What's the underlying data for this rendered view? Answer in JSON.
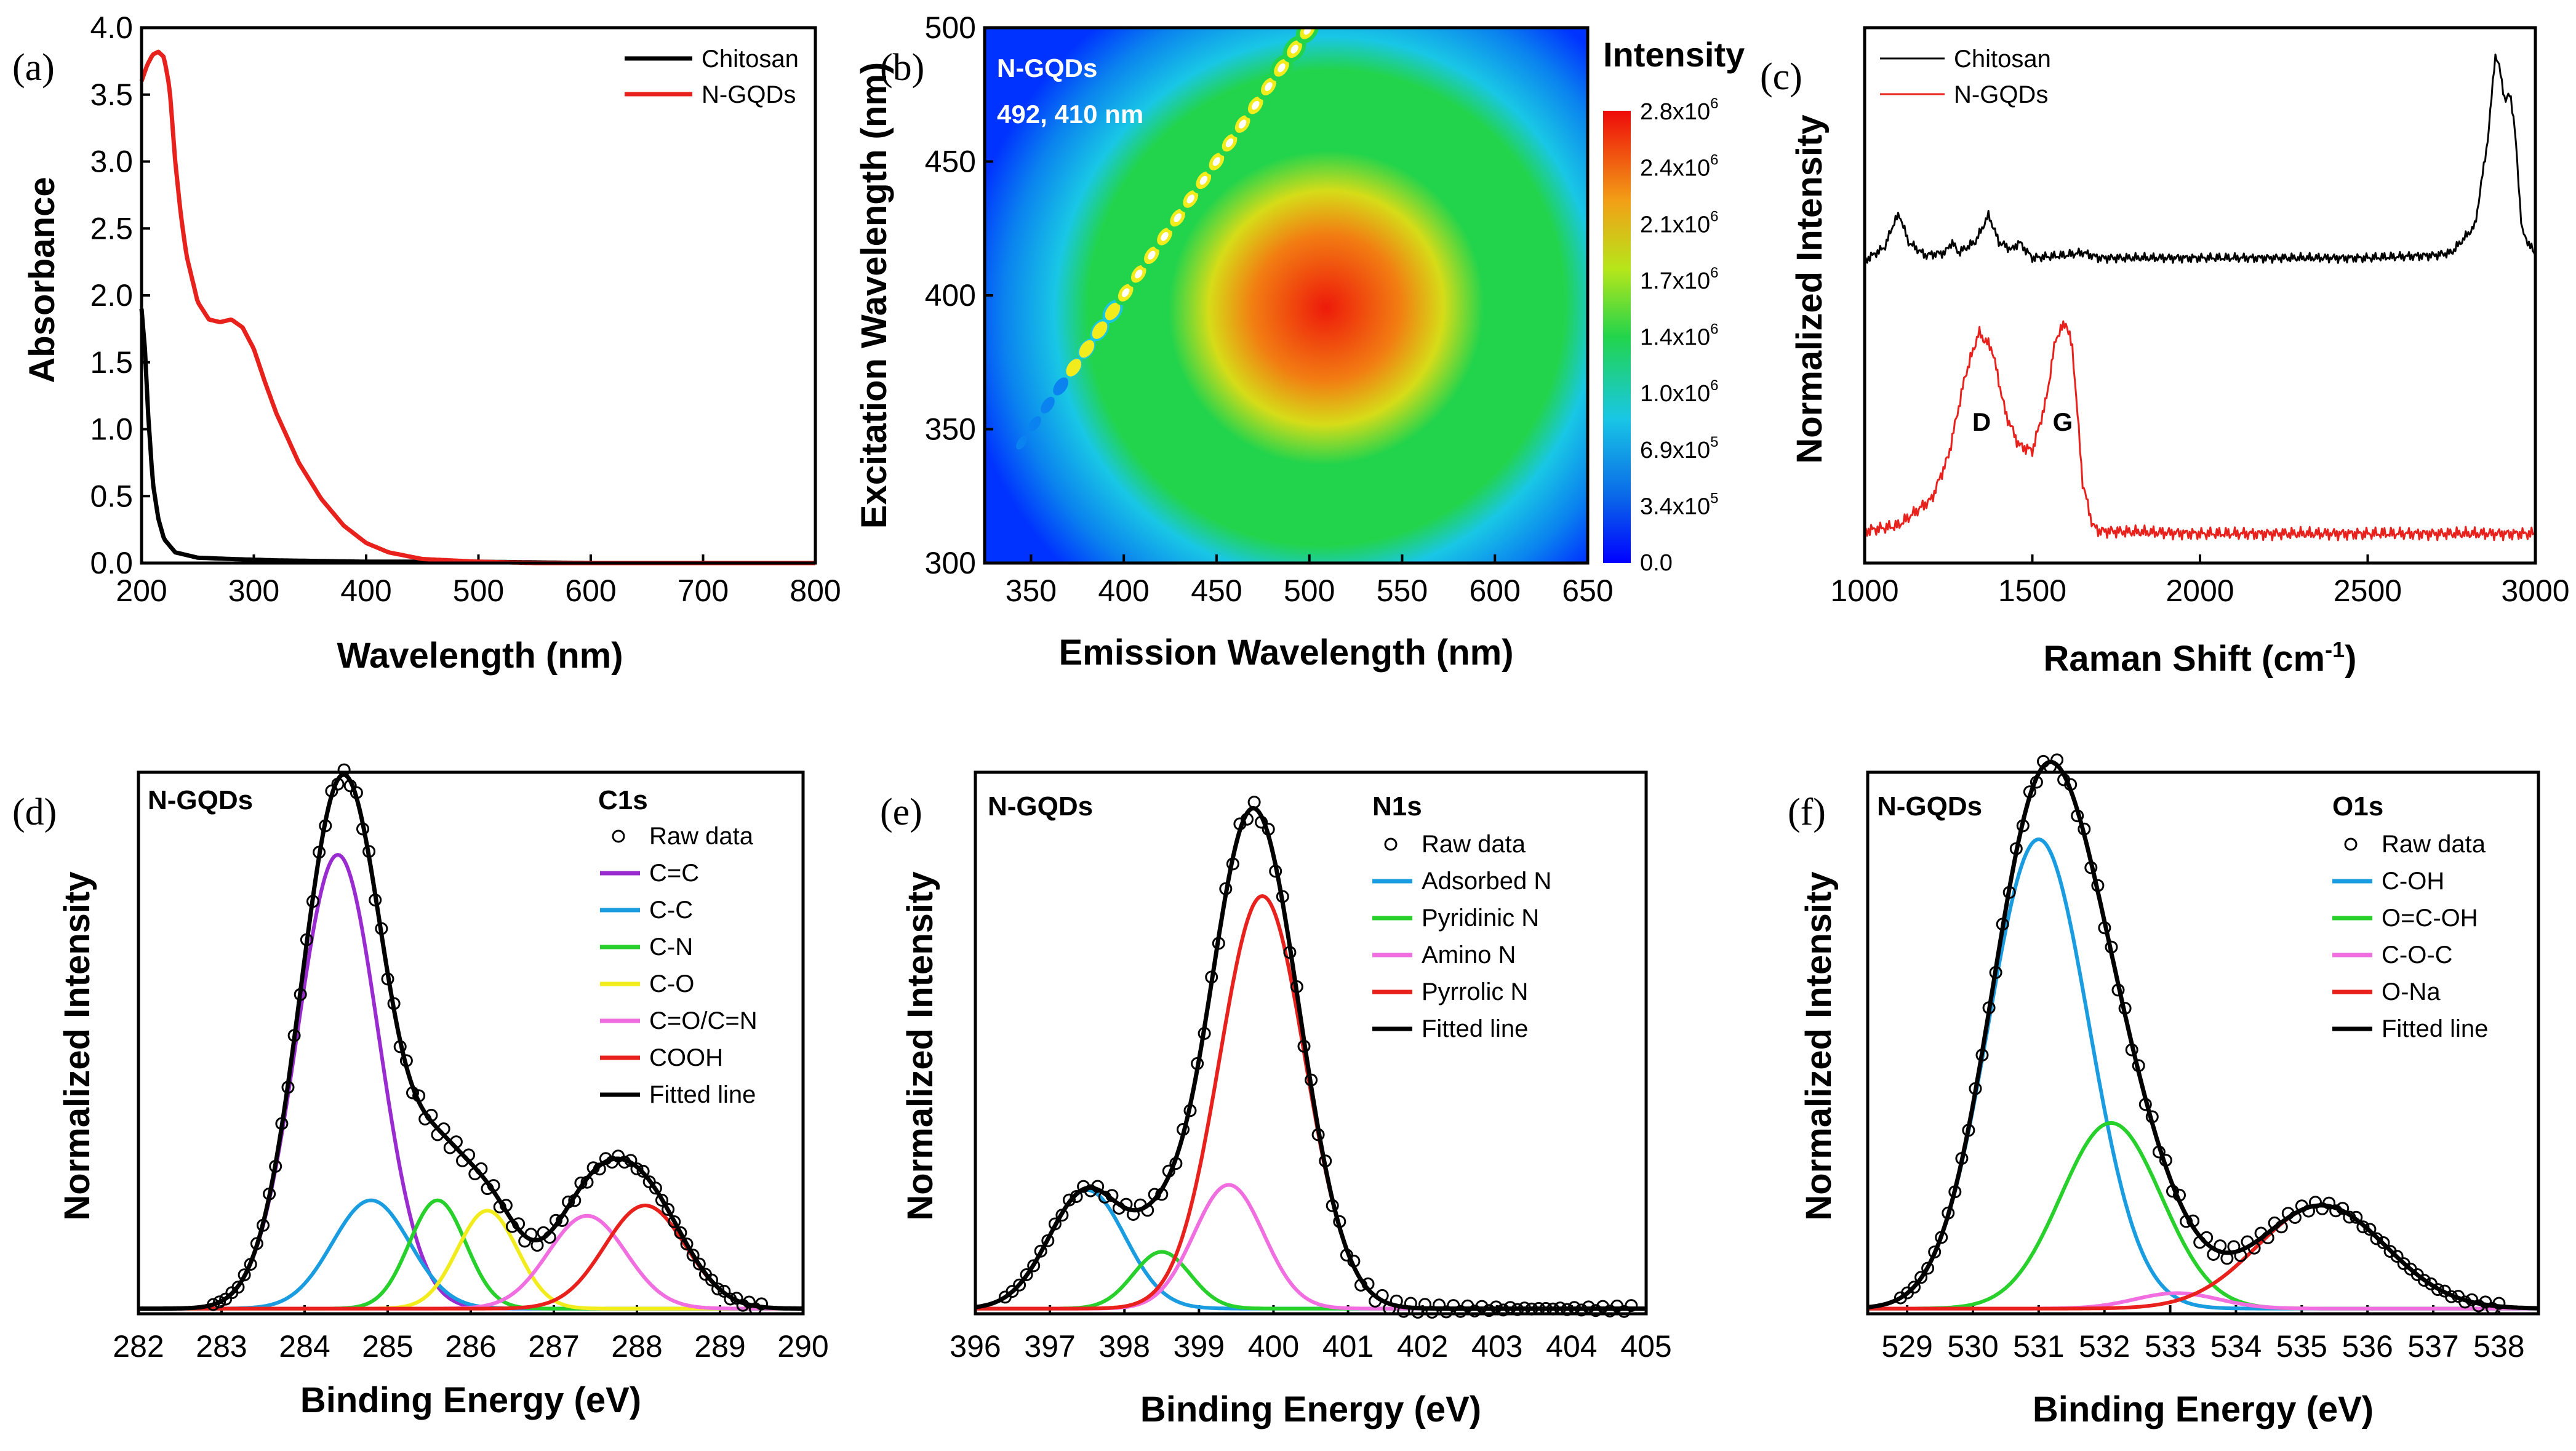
{
  "figure": {
    "panel_labels": [
      "(a)",
      "(b)",
      "(c)",
      "(d)",
      "(e)",
      "(f)"
    ]
  },
  "chart_data": [
    {
      "id": "a",
      "type": "line",
      "panel_label": "(a)",
      "xlabel": "Wavelength (nm)",
      "ylabel": "Absorbance",
      "xlim": [
        200,
        800
      ],
      "ylim": [
        0,
        4.0
      ],
      "xticks": [
        200,
        300,
        400,
        500,
        600,
        700,
        800
      ],
      "yticks": [
        0.0,
        0.5,
        1.0,
        1.5,
        2.0,
        2.5,
        3.0,
        3.5,
        4.0
      ],
      "legend_position": "top-right",
      "series": [
        {
          "name": "Chitosan",
          "color": "#000000",
          "x": [
            200,
            203,
            206,
            210,
            215,
            220,
            230,
            250,
            280,
            320,
            400,
            500,
            600,
            700,
            800
          ],
          "y": [
            1.9,
            1.6,
            1.1,
            0.6,
            0.33,
            0.18,
            0.08,
            0.04,
            0.03,
            0.02,
            0.01,
            0.01,
            0.0,
            0.0,
            0.0
          ]
        },
        {
          "name": "N-GQDs",
          "color": "#e8211d",
          "x": [
            200,
            205,
            210,
            215,
            220,
            225,
            230,
            235,
            240,
            250,
            260,
            270,
            280,
            290,
            300,
            310,
            320,
            340,
            360,
            380,
            400,
            420,
            450,
            500,
            550,
            600,
            700,
            800
          ],
          "y": [
            3.6,
            3.72,
            3.8,
            3.82,
            3.78,
            3.55,
            3.0,
            2.6,
            2.3,
            1.95,
            1.82,
            1.8,
            1.82,
            1.76,
            1.6,
            1.35,
            1.12,
            0.75,
            0.48,
            0.28,
            0.15,
            0.08,
            0.03,
            0.01,
            0.0,
            0.0,
            0.0,
            0.0
          ]
        }
      ]
    },
    {
      "id": "b",
      "type": "heatmap",
      "panel_label": "(b)",
      "xlabel": "Emission Wavelength (nm)",
      "ylabel": "Excitation Wavelength (nm)",
      "xlim": [
        325,
        650
      ],
      "ylim": [
        300,
        500
      ],
      "xticks": [
        350,
        400,
        450,
        500,
        550,
        600,
        650
      ],
      "yticks": [
        300,
        350,
        400,
        450,
        500
      ],
      "annotation": [
        "N-GQDs",
        "492, 410 nm"
      ],
      "peak": {
        "emission": 492,
        "excitation": 410
      },
      "colorbar": {
        "title": "Intensity",
        "min": 0,
        "max": 2800000,
        "labels": [
          "2.8x10^6",
          "2.4x10^6",
          "2.1x10^6",
          "1.7x10^6",
          "1.4x10^6",
          "1.0x10^6",
          "6.9x10^5",
          "3.4x10^5",
          "0.0"
        ]
      }
    },
    {
      "id": "c",
      "type": "line",
      "panel_label": "(c)",
      "xlabel": "Raman Shift (cm-1)",
      "ylabel": "Normalized Intensity",
      "xlim": [
        1000,
        3000
      ],
      "ylim": [
        0,
        1
      ],
      "xticks": [
        1000,
        1500,
        2000,
        2500,
        3000
      ],
      "legend_position": "top-left",
      "annotations": [
        {
          "text": "D",
          "x": 1350
        },
        {
          "text": "G",
          "x": 1590
        }
      ],
      "series": [
        {
          "name": "Chitosan",
          "color": "#000000",
          "x": [
            1000,
            1060,
            1090,
            1105,
            1130,
            1180,
            1240,
            1260,
            1280,
            1330,
            1370,
            1400,
            1440,
            1460,
            1500,
            1600,
            1650,
            1700,
            2000,
            2500,
            2700,
            2750,
            2820,
            2860,
            2880,
            2895,
            2910,
            2925,
            2940,
            2960,
            3000
          ],
          "y": [
            0.565,
            0.59,
            0.64,
            0.65,
            0.6,
            0.575,
            0.58,
            0.6,
            0.58,
            0.6,
            0.65,
            0.6,
            0.585,
            0.6,
            0.57,
            0.575,
            0.58,
            0.57,
            0.57,
            0.57,
            0.575,
            0.58,
            0.63,
            0.8,
            0.95,
            0.92,
            0.86,
            0.88,
            0.8,
            0.62,
            0.575
          ]
        },
        {
          "name": "N-GQDs",
          "color": "#e8211d",
          "x": [
            1000,
            1100,
            1200,
            1250,
            1300,
            1340,
            1380,
            1420,
            1460,
            1500,
            1540,
            1570,
            1600,
            1620,
            1650,
            1680,
            1700,
            2000,
            2500,
            3000
          ],
          "y": [
            0.06,
            0.07,
            0.12,
            0.2,
            0.35,
            0.43,
            0.4,
            0.28,
            0.22,
            0.21,
            0.3,
            0.42,
            0.45,
            0.4,
            0.15,
            0.07,
            0.06,
            0.055,
            0.055,
            0.055
          ]
        }
      ]
    },
    {
      "id": "d",
      "type": "line",
      "panel_label": "(d)",
      "sample_label": "N-GQDs",
      "legend_title": "C1s",
      "xlabel": "Binding Energy (eV)",
      "ylabel": "Normalized Intensity",
      "xlim": [
        282,
        290
      ],
      "ylim": [
        0,
        1.05
      ],
      "xticks": [
        282,
        283,
        284,
        285,
        286,
        287,
        288,
        289,
        290
      ],
      "raw_label": "Raw data",
      "fit_label": "Fitted line",
      "raw_x_range": [
        282.9,
        289.5
      ],
      "components": [
        {
          "name": "C=C",
          "color": "#9a2bd0",
          "center": 284.4,
          "height": 0.88,
          "fwhm": 1.15
        },
        {
          "name": "C-C",
          "color": "#1a9ce0",
          "center": 284.8,
          "height": 0.21,
          "fwhm": 1.1
        },
        {
          "name": "C-N",
          "color": "#27d02a",
          "center": 285.6,
          "height": 0.21,
          "fwhm": 0.8
        },
        {
          "name": "C-O",
          "color": "#f2ec1c",
          "center": 286.2,
          "height": 0.19,
          "fwhm": 0.85
        },
        {
          "name": "C=O/C=N",
          "color": "#f06ee0",
          "center": 287.4,
          "height": 0.18,
          "fwhm": 1.1
        },
        {
          "name": "COOH",
          "color": "#e8211d",
          "center": 288.1,
          "height": 0.2,
          "fwhm": 1.15
        }
      ]
    },
    {
      "id": "e",
      "type": "line",
      "panel_label": "(e)",
      "sample_label": "N-GQDs",
      "legend_title": "N1s",
      "xlabel": "Binding Energy (eV)",
      "ylabel": "Normalized Intensity",
      "xlim": [
        396,
        405
      ],
      "ylim": [
        0,
        1.05
      ],
      "xticks": [
        396,
        397,
        398,
        399,
        400,
        401,
        402,
        403,
        404,
        405
      ],
      "raw_label": "Raw data",
      "fit_label": "Fitted line",
      "raw_x_range": [
        396.4,
        404.8
      ],
      "components": [
        {
          "name": "Adsorbed N",
          "color": "#1a9ce0",
          "center": 397.5,
          "height": 0.23,
          "fwhm": 1.2
        },
        {
          "name": "Pyridinic N",
          "color": "#27d02a",
          "center": 398.5,
          "height": 0.11,
          "fwhm": 0.9
        },
        {
          "name": "Amino N",
          "color": "#f06ee0",
          "center": 399.4,
          "height": 0.24,
          "fwhm": 1.1
        },
        {
          "name": "Pyrrolic N",
          "color": "#e8211d",
          "center": 399.85,
          "height": 0.8,
          "fwhm": 1.35
        }
      ]
    },
    {
      "id": "f",
      "type": "line",
      "panel_label": "(f)",
      "sample_label": "N-GQDs",
      "legend_title": "O1s",
      "xlabel": "Binding Energy (eV)",
      "ylabel": "Normalized Intensity",
      "xlim": [
        528.4,
        538.6
      ],
      "ylim": [
        0,
        1.05
      ],
      "xticks": [
        529,
        530,
        531,
        532,
        533,
        534,
        535,
        536,
        537,
        538
      ],
      "raw_label": "Raw data",
      "fit_label": "Fitted line",
      "raw_x_range": [
        528.9,
        538.0
      ],
      "components": [
        {
          "name": "C-OH",
          "color": "#1a9ce0",
          "center": 531.0,
          "height": 0.91,
          "fwhm": 1.8
        },
        {
          "name": "O=C-OH",
          "color": "#27d02a",
          "center": 532.1,
          "height": 0.36,
          "fwhm": 1.8
        },
        {
          "name": "C-O-C",
          "color": "#f06ee0",
          "center": 533.1,
          "height": 0.03,
          "fwhm": 1.5
        },
        {
          "name": "O-Na",
          "color": "#e8211d",
          "center": 535.3,
          "height": 0.2,
          "fwhm": 2.3
        }
      ]
    }
  ]
}
